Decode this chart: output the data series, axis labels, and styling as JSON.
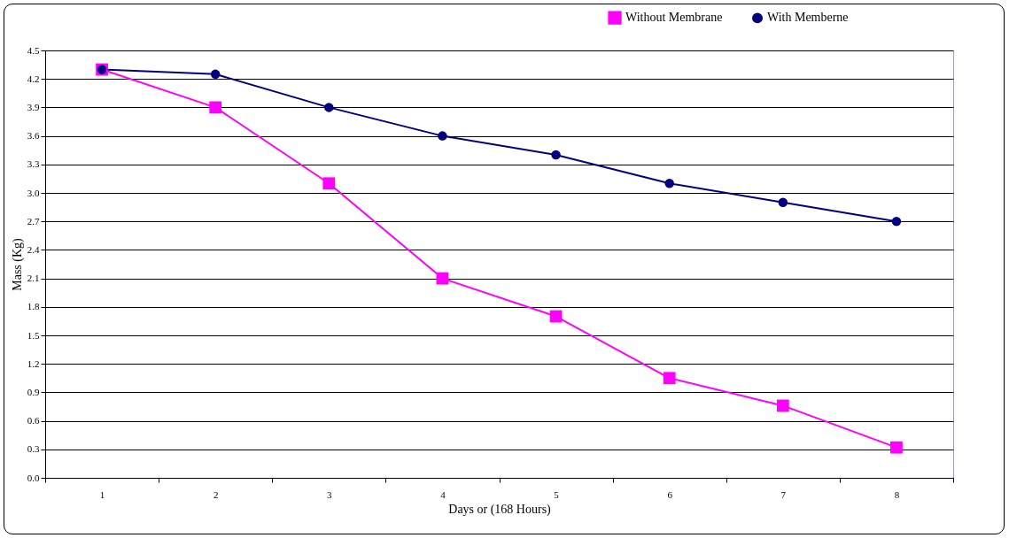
{
  "chart_data": {
    "type": "line",
    "xlabel": "Days or (168 Hours)",
    "ylabel": "Mass (Kg)",
    "categories": [
      "1",
      "2",
      "3",
      "4",
      "5",
      "6",
      "7",
      "8"
    ],
    "series": [
      {
        "name": "Without Membrane",
        "color": "#ff00ff",
        "marker": "square",
        "values": [
          4.3,
          3.9,
          3.1,
          2.1,
          1.7,
          1.05,
          0.76,
          0.32
        ]
      },
      {
        "name": "With Memberne",
        "color": "#000080",
        "marker": "circle",
        "values": [
          4.3,
          4.25,
          3.9,
          3.6,
          3.4,
          3.1,
          2.9,
          2.7
        ]
      }
    ],
    "ylim": [
      0,
      4.5
    ],
    "yticks": [
      {
        "value": 0,
        "label": "0.0"
      },
      0.3,
      0.6,
      0.9,
      1.2,
      1.5,
      1.8,
      2.1,
      2.4,
      2.7,
      {
        "value": 3,
        "label": "3.0"
      },
      3.3,
      3.6,
      3.9,
      4.2,
      4.5
    ],
    "grid": "y",
    "legend": "top right"
  }
}
